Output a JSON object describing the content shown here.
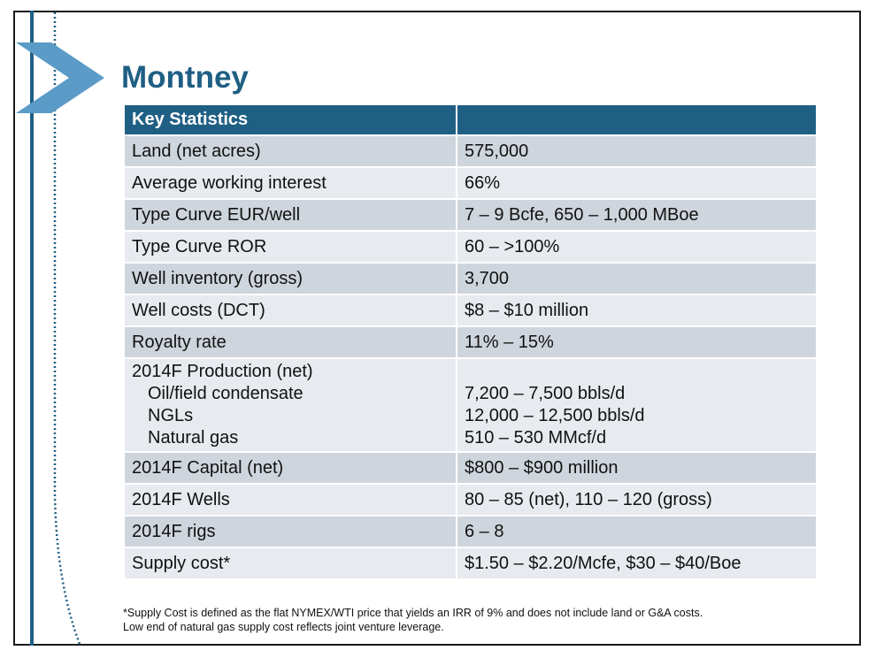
{
  "title": "Montney",
  "table": {
    "header": [
      "Key Statistics",
      ""
    ],
    "rows": [
      {
        "label": "Land (net acres)",
        "value": "575,000"
      },
      {
        "label": "Average working interest",
        "value": "66%"
      },
      {
        "label": "Type Curve EUR/well",
        "value": "7 – 9 Bcfe, 650 – 1,000 MBoe"
      },
      {
        "label": "Type Curve ROR",
        "value": "60 – >100%"
      },
      {
        "label": "Well inventory (gross)",
        "value": "3,700"
      },
      {
        "label": "Well costs (DCT)",
        "value": "$8 – $10 million"
      },
      {
        "label": "Royalty rate",
        "value": "11% – 15%"
      }
    ],
    "production": {
      "label": "2014F Production (net)",
      "items": [
        {
          "label": "Oil/field condensate",
          "value": "7,200 – 7,500 bbls/d"
        },
        {
          "label": "NGLs",
          "value": "12,000 – 12,500 bbls/d"
        },
        {
          "label": "Natural gas",
          "value": "510 – 530 MMcf/d"
        }
      ]
    },
    "rows_after": [
      {
        "label": "2014F Capital (net)",
        "value": "$800 – $900 million"
      },
      {
        "label": "2014F Wells",
        "value": "80 – 85 (net), 110 – 120 (gross)"
      },
      {
        "label": "2014F rigs",
        "value": "6 – 8"
      },
      {
        "label": "Supply cost*",
        "value": "$1.50 – $2.20/Mcfe, $30 – $40/Boe"
      }
    ]
  },
  "footnote": [
    "*Supply Cost is defined as the flat NYMEX/WTI price that yields an IRR of 9% and does not include land or G&A costs.",
    "Low end of natural gas supply cost reflects joint venture leverage."
  ],
  "colors": {
    "accent": "#1f5f84",
    "chevron": "#5b9bc7",
    "row_dark": "#cfd5dc",
    "row_light": "#e7eaee"
  }
}
